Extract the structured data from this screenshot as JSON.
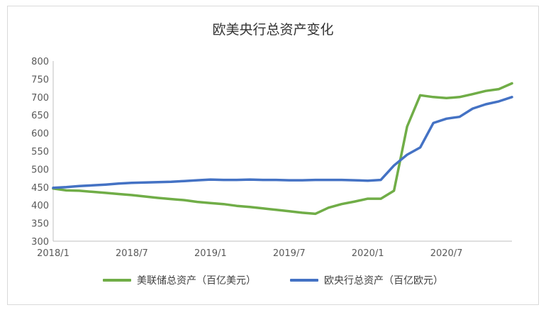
{
  "chart_data": {
    "type": "line",
    "title": "欧美央行总资产变化",
    "xlabel": "",
    "ylabel": "",
    "ylim": [
      300,
      800
    ],
    "yticks": [
      300,
      350,
      400,
      450,
      500,
      550,
      600,
      650,
      700,
      750,
      800
    ],
    "xticks": [
      "2018/1",
      "2018/7",
      "2019/1",
      "2019/7",
      "2020/1",
      "2020/7"
    ],
    "x_start": "2018/1",
    "x_end": "2020/12",
    "grid": false,
    "legend_position": "bottom",
    "series": [
      {
        "name": "美联储总资产（百亿美元）",
        "color": "#70ad47",
        "points": [
          [
            "2018/1",
            446
          ],
          [
            "2018/2",
            441
          ],
          [
            "2018/3",
            440
          ],
          [
            "2018/4",
            437
          ],
          [
            "2018/5",
            434
          ],
          [
            "2018/6",
            431
          ],
          [
            "2018/7",
            428
          ],
          [
            "2018/8",
            424
          ],
          [
            "2018/9",
            420
          ],
          [
            "2018/10",
            417
          ],
          [
            "2018/11",
            414
          ],
          [
            "2018/12",
            409
          ],
          [
            "2019/1",
            406
          ],
          [
            "2019/2",
            403
          ],
          [
            "2019/3",
            398
          ],
          [
            "2019/4",
            395
          ],
          [
            "2019/5",
            391
          ],
          [
            "2019/6",
            387
          ],
          [
            "2019/7",
            383
          ],
          [
            "2019/8",
            379
          ],
          [
            "2019/9",
            376
          ],
          [
            "2019/10",
            393
          ],
          [
            "2019/11",
            403
          ],
          [
            "2019/12",
            410
          ],
          [
            "2020/1",
            418
          ],
          [
            "2020/2",
            418
          ],
          [
            "2020/3",
            440
          ],
          [
            "2020/4",
            618
          ],
          [
            "2020/5",
            705
          ],
          [
            "2020/6",
            700
          ],
          [
            "2020/7",
            697
          ],
          [
            "2020/8",
            700
          ],
          [
            "2020/9",
            708
          ],
          [
            "2020/10",
            717
          ],
          [
            "2020/11",
            722
          ],
          [
            "2020/12",
            738
          ]
        ]
      },
      {
        "name": "欧央行总资产（百亿欧元）",
        "color": "#4472c4",
        "points": [
          [
            "2018/1",
            448
          ],
          [
            "2018/2",
            450
          ],
          [
            "2018/3",
            453
          ],
          [
            "2018/4",
            455
          ],
          [
            "2018/5",
            457
          ],
          [
            "2018/6",
            460
          ],
          [
            "2018/7",
            462
          ],
          [
            "2018/8",
            463
          ],
          [
            "2018/9",
            464
          ],
          [
            "2018/10",
            465
          ],
          [
            "2018/11",
            467
          ],
          [
            "2018/12",
            469
          ],
          [
            "2019/1",
            471
          ],
          [
            "2019/2",
            470
          ],
          [
            "2019/3",
            470
          ],
          [
            "2019/4",
            471
          ],
          [
            "2019/5",
            470
          ],
          [
            "2019/6",
            470
          ],
          [
            "2019/7",
            469
          ],
          [
            "2019/8",
            469
          ],
          [
            "2019/9",
            470
          ],
          [
            "2019/10",
            470
          ],
          [
            "2019/11",
            470
          ],
          [
            "2019/12",
            469
          ],
          [
            "2020/1",
            468
          ],
          [
            "2020/2",
            470
          ],
          [
            "2020/3",
            510
          ],
          [
            "2020/4",
            540
          ],
          [
            "2020/5",
            560
          ],
          [
            "2020/6",
            628
          ],
          [
            "2020/7",
            640
          ],
          [
            "2020/8",
            645
          ],
          [
            "2020/9",
            668
          ],
          [
            "2020/10",
            680
          ],
          [
            "2020/11",
            688
          ],
          [
            "2020/12",
            700
          ]
        ]
      }
    ]
  }
}
